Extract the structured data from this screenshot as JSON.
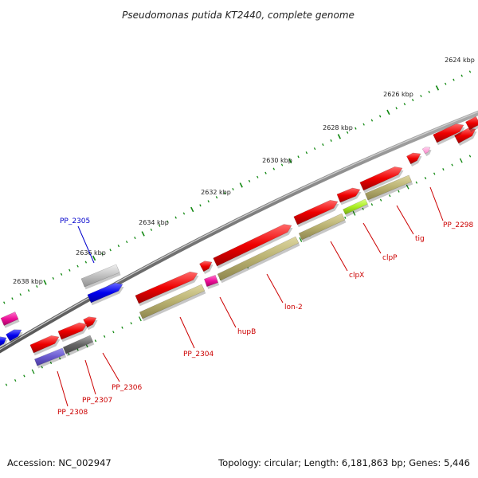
{
  "title": "Pseudomonas putida KT2440, complete genome",
  "ticks": [
    "2624 kbp",
    "2626 kbp",
    "2628 kbp",
    "2630 kbp",
    "2632 kbp",
    "2634 kbp",
    "2636 kbp",
    "2638 kbp"
  ],
  "gene_labels": [
    "PP_2298",
    "tig",
    "clpP",
    "clpX",
    "lon-2",
    "hupB",
    "PP_2304",
    "PP_2305",
    "PP_2306",
    "PP_2307",
    "PP_2308"
  ],
  "footer": {
    "accession": "Accession: NC_002947",
    "summary": "Topology: circular; Length: 6,181,863 bp; Genes: 5,446"
  },
  "colors": {
    "forward_cds": "#ee0000",
    "reverse_cds": "#0000ee",
    "rna": "#ee1199",
    "cog": "#b8b070",
    "backbone": "#777777",
    "tick": "#118811",
    "label": "#cc0000",
    "highlight_label": "#0000cc"
  }
}
